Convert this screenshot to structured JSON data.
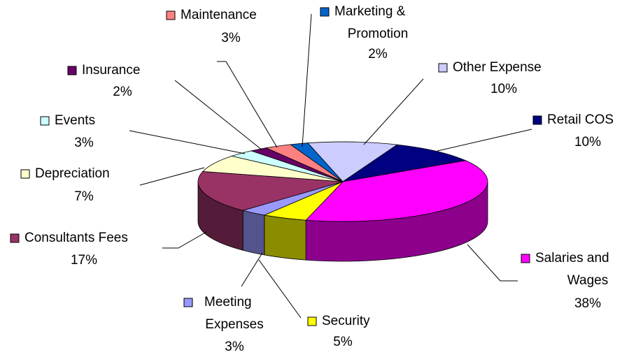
{
  "chart_data": {
    "type": "pie",
    "categories": [
      "Other Expense",
      "Retail COS",
      "Salaries and Wages",
      "Security",
      "Meeting Expenses",
      "Consultants Fees",
      "Depreciation",
      "Events",
      "Insurance",
      "Maintenance",
      "Marketing & Promotion"
    ],
    "values": [
      10,
      10,
      38,
      5,
      3,
      17,
      7,
      3,
      2,
      3,
      2
    ],
    "value_labels": [
      "10%",
      "10%",
      "38%",
      "5%",
      "3%",
      "17%",
      "7%",
      "3%",
      "2%",
      "3%",
      "2%"
    ],
    "colors": [
      "#ccccff",
      "#000080",
      "#ff00ff",
      "#ffff00",
      "#9999ff",
      "#993366",
      "#ffffcc",
      "#ccffff",
      "#660066",
      "#ff8080",
      "#0066cc"
    ]
  }
}
